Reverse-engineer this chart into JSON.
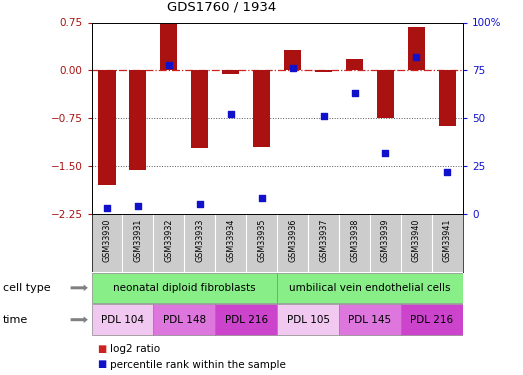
{
  "title": "GDS1760 / 1934",
  "samples": [
    "GSM33930",
    "GSM33931",
    "GSM33932",
    "GSM33933",
    "GSM33934",
    "GSM33935",
    "GSM33936",
    "GSM33937",
    "GSM33938",
    "GSM33939",
    "GSM33940",
    "GSM33941"
  ],
  "log2_ratio": [
    -1.8,
    -1.57,
    0.72,
    -1.22,
    -0.05,
    -1.2,
    0.32,
    -0.02,
    0.18,
    -0.75,
    0.68,
    -0.88
  ],
  "percentile_rank": [
    3,
    4,
    78,
    5,
    52,
    8,
    76,
    51,
    63,
    32,
    82,
    22
  ],
  "ylim_left": [
    -2.25,
    0.75
  ],
  "ylim_right": [
    0,
    100
  ],
  "yticks_left": [
    0.75,
    0,
    -0.75,
    -1.5,
    -2.25
  ],
  "yticks_right_vals": [
    100,
    75,
    50,
    25,
    0
  ],
  "yticks_right_labels": [
    "100%",
    "75",
    "50",
    "25",
    "0"
  ],
  "bar_color": "#aa1111",
  "dot_color": "#1111cc",
  "ref_line_color": "#cc2222",
  "dotted_line_color": "#555555",
  "sample_bg_color": "#cccccc",
  "cell_type_color": "#88ee88",
  "time_colors": [
    "#f0c8f0",
    "#dd77dd",
    "#cc44cc",
    "#f0c8f0",
    "#dd77dd",
    "#cc44cc"
  ],
  "time_labels": [
    "PDL 104",
    "PDL 148",
    "PDL 216",
    "PDL 105",
    "PDL 145",
    "PDL 216"
  ],
  "cell_type_labels": [
    "neonatal diploid fibroblasts",
    "umbilical vein endothelial cells"
  ],
  "legend_bar_color": "#cc2222",
  "legend_dot_color": "#1111cc",
  "legend_text1": "log2 ratio",
  "legend_text2": "percentile rank within the sample",
  "bar_width": 0.55
}
